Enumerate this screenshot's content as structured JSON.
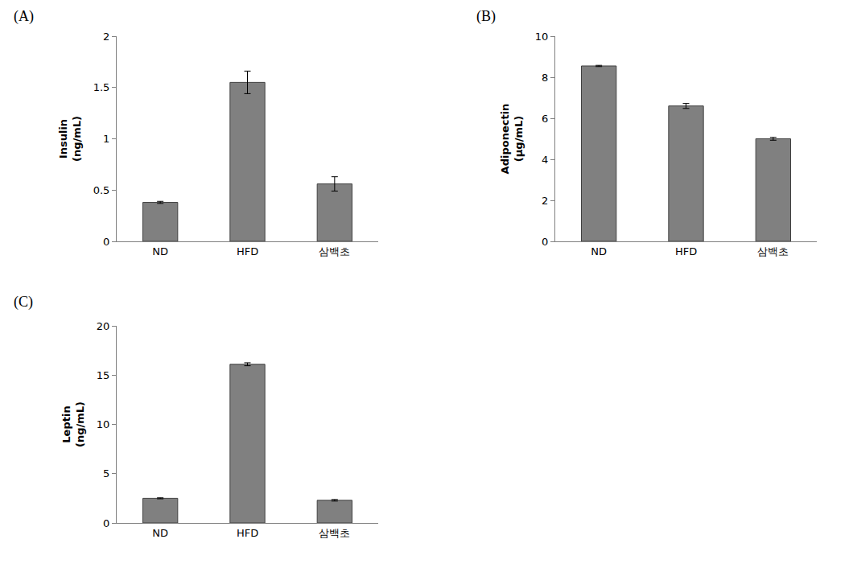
{
  "chart_data": [
    {
      "type": "bar",
      "title": "(A)",
      "y_label": [
        "Insulin",
        "(ng/mL)"
      ],
      "categories": [
        "ND",
        "HFD",
        "삼백초"
      ],
      "values": [
        0.38,
        1.55,
        0.56
      ],
      "error": [
        0.01,
        0.11,
        0.07
      ],
      "color": "#808080",
      "ylim": [
        0,
        2
      ],
      "yticks": [
        0,
        0.5,
        1,
        1.5,
        2
      ],
      "grid": false
    },
    {
      "type": "bar",
      "title": "(B)",
      "y_label": [
        "Adiponectin",
        "(μg/mL)"
      ],
      "categories": [
        "ND",
        "HFD",
        "삼백초"
      ],
      "values": [
        8.55,
        6.6,
        5.0
      ],
      "error": [
        0.03,
        0.12,
        0.07
      ],
      "color": "#808080",
      "ylim": [
        0,
        10
      ],
      "yticks": [
        0,
        2,
        4,
        6,
        8,
        10
      ],
      "grid": false
    },
    {
      "type": "bar",
      "title": "(C)",
      "y_label": [
        "Leptin",
        "(ng/mL)"
      ],
      "categories": [
        "ND",
        "HFD",
        "삼백초"
      ],
      "values": [
        2.5,
        16.1,
        2.3
      ],
      "error": [
        0.05,
        0.15,
        0.08
      ],
      "color": "#808080",
      "ylim": [
        0,
        20
      ],
      "yticks": [
        0,
        5,
        10,
        15,
        20
      ],
      "grid": false
    }
  ]
}
